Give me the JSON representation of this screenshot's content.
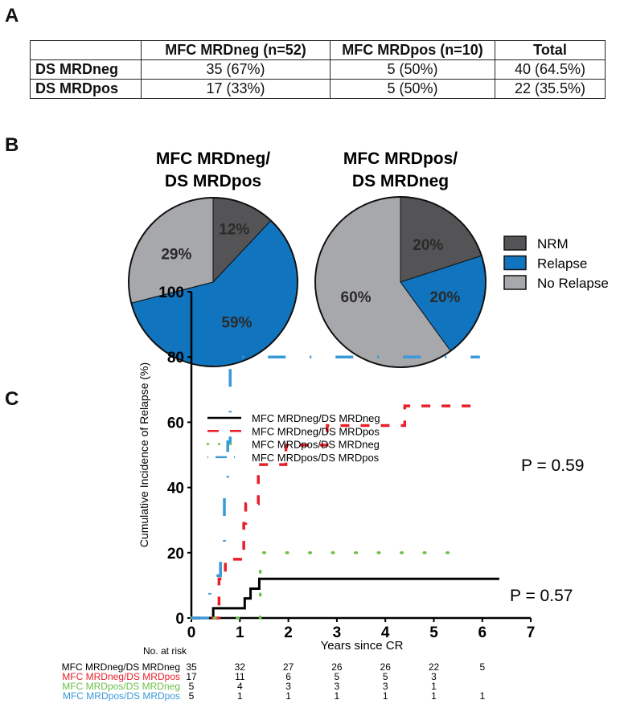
{
  "panels": {
    "a": "A",
    "b": "B",
    "c": "C"
  },
  "table": {
    "headers": [
      "",
      "MFC MRDneg (n=52)",
      "MFC MRDpos (n=10)",
      "Total"
    ],
    "rows": [
      [
        "DS MRDneg",
        "35 (67%)",
        "5 (50%)",
        "40 (64.5%)"
      ],
      [
        "DS MRDpos",
        "17 (33%)",
        "5 (50%)",
        "22 (35.5%)"
      ]
    ]
  },
  "chart_data": [
    {
      "type": "pie",
      "title": [
        "MFC MRDneg/",
        "DS MRDpos"
      ],
      "slices": [
        {
          "label": "NRM",
          "value": 12,
          "text": "12%"
        },
        {
          "label": "Relapse",
          "value": 59,
          "text": "59%"
        },
        {
          "label": "No Relapse",
          "value": 29,
          "text": "29%"
        }
      ]
    },
    {
      "type": "pie",
      "title": [
        "MFC MRDpos/",
        "DS MRDneg"
      ],
      "slices": [
        {
          "label": "NRM",
          "value": 20,
          "text": "20%"
        },
        {
          "label": "Relapse",
          "value": 20,
          "text": "20%"
        },
        {
          "label": "No Relapse",
          "value": 60,
          "text": "60%"
        }
      ]
    },
    {
      "type": "line",
      "step": true,
      "xlabel": "Years since CR",
      "ylabel": "Cumulative Incidence of Relapse (%)",
      "xlim": [
        0,
        7
      ],
      "ylim": [
        0,
        100
      ],
      "xticks": [
        "0",
        "1",
        "2",
        "3",
        "4",
        "5",
        "6",
        "7"
      ],
      "yticks": [
        "0",
        "20",
        "40",
        "60",
        "80",
        "100"
      ],
      "series": [
        {
          "name": "MFC MRDneg/DS MRDneg",
          "style": "solid",
          "points": [
            [
              0,
              0
            ],
            [
              0.45,
              3
            ],
            [
              1.1,
              6
            ],
            [
              1.22,
              9
            ],
            [
              1.4,
              12
            ],
            [
              6.35,
              12
            ]
          ]
        },
        {
          "name": "MFC MRDneg/DS MRDpos",
          "style": "dashed",
          "points": [
            [
              0,
              0
            ],
            [
              0.57,
              12
            ],
            [
              0.7,
              18
            ],
            [
              1.08,
              29
            ],
            [
              1.12,
              35
            ],
            [
              1.38,
              47
            ],
            [
              1.95,
              53
            ],
            [
              2.8,
              59
            ],
            [
              4.4,
              65
            ],
            [
              5.8,
              65
            ]
          ]
        },
        {
          "name": "MFC MRDpos/DS MRDneg",
          "style": "dotted",
          "points": [
            [
              0,
              0
            ],
            [
              1.42,
              20
            ],
            [
              5.55,
              20
            ]
          ]
        },
        {
          "name": "MFC MRDpos/DS MRDpos",
          "style": "dashdot",
          "points": [
            [
              0,
              0
            ],
            [
              0.38,
              13
            ],
            [
              0.6,
              20
            ],
            [
              0.68,
              40
            ],
            [
              0.75,
              54
            ],
            [
              0.8,
              80
            ],
            [
              5.95,
              80
            ]
          ]
        }
      ],
      "annotations": [
        "P = 0.59",
        "P = 0.57"
      ],
      "risk_title": "No. at risk",
      "risk_table": [
        [
          "35",
          "32",
          "27",
          "26",
          "26",
          "22",
          "5"
        ],
        [
          "17",
          "11",
          "6",
          "5",
          "5",
          "3",
          ""
        ],
        [
          "5",
          "4",
          "3",
          "3",
          "3",
          "1",
          ""
        ],
        [
          "5",
          "1",
          "1",
          "1",
          "1",
          "1",
          "1"
        ]
      ]
    }
  ],
  "legend": [
    "NRM",
    "Relapse",
    "No Relapse"
  ],
  "colors": {
    "nrm": "#545456",
    "relapse": "#1174be",
    "norelapse": "#a7a8ab",
    "s0": "#000000",
    "s1": "#e8202a",
    "s2": "#6cc04a",
    "s3": "#3a99d8"
  }
}
